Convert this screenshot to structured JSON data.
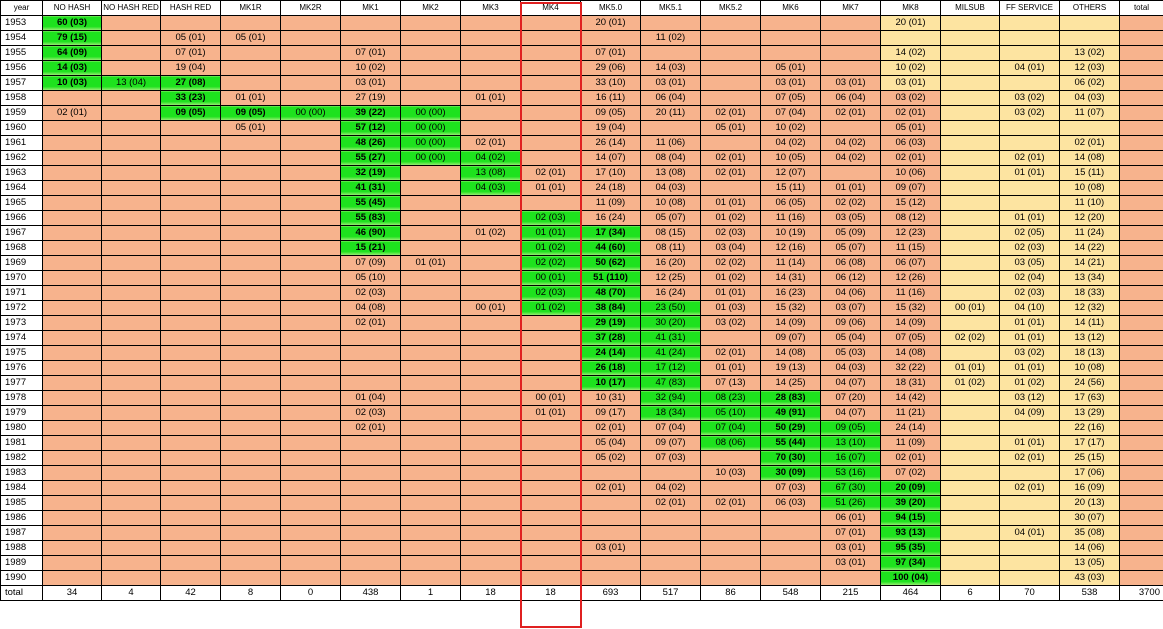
{
  "highlight_color": "#e02020",
  "colors": {
    "orange": "#f7b38d",
    "yellow": "#fde4a1",
    "green": "#1ee21e"
  },
  "headers": [
    "year",
    "NO HASH",
    "NO HASH RED",
    "HASH RED",
    "MK1R",
    "MK2R",
    "MK1",
    "MK2",
    "MK3",
    "MK4",
    "MK5.0",
    "MK5.1",
    "MK5.2",
    "MK6",
    "MK7",
    "MK8",
    "MILSUB",
    "FF SERVICE",
    "OTHERS",
    "total"
  ],
  "rows": [
    {
      "year": "1953",
      "c": [
        "60 (03)",
        "",
        "",
        "",
        "",
        "",
        "",
        "",
        "",
        "20 (01)",
        "",
        "",
        "",
        "",
        "20 (01)",
        "",
        "",
        "",
        ""
      ],
      "total": "5"
    },
    {
      "year": "1954",
      "c": [
        "79 (15)",
        "",
        "05 (01)",
        "05 (01)",
        "",
        "",
        "",
        "",
        "",
        "",
        "11 (02)",
        "",
        "",
        "",
        "",
        "",
        "",
        "",
        ""
      ],
      "total": "19"
    },
    {
      "year": "1955",
      "c": [
        "64 (09)",
        "",
        "07 (01)",
        "",
        "",
        "07 (01)",
        "",
        "",
        "",
        "07 (01)",
        "",
        "",
        "",
        "",
        "14 (02)",
        "",
        "",
        "13 (02)",
        ""
      ],
      "total": "16"
    },
    {
      "year": "1956",
      "c": [
        "14 (03)",
        "",
        "19 (04)",
        "",
        "",
        "10 (02)",
        "",
        "",
        "",
        "29 (06)",
        "14 (03)",
        "",
        "05 (01)",
        "",
        "10 (02)",
        "",
        "04 (01)",
        "12 (03)",
        ""
      ],
      "total": "25"
    },
    {
      "year": "1957",
      "c": [
        "10 (03)",
        "13 (04)",
        "27 (08)",
        "",
        "",
        "03 (01)",
        "",
        "",
        "",
        "33 (10)",
        "03 (01)",
        "",
        "03 (01)",
        "03 (01)",
        "03 (01)",
        "",
        "",
        "06 (02)",
        ""
      ],
      "total": "32"
    },
    {
      "year": "1958",
      "c": [
        "",
        "",
        "33 (23)",
        "01 (01)",
        "",
        "27 (19)",
        "",
        "01 (01)",
        "",
        "16 (11)",
        "06 (04)",
        "",
        "07 (05)",
        "06 (04)",
        "03 (02)",
        "",
        "03 (02)",
        "04 (03)",
        ""
      ],
      "total": "75"
    },
    {
      "year": "1959",
      "c": [
        "02 (01)",
        "",
        "09 (05)",
        "09 (05)",
        "00 (00)",
        "39 (22)",
        "00 (00)",
        "",
        "",
        "09 (05)",
        "20 (11)",
        "02 (01)",
        "07 (04)",
        "02 (01)",
        "02 (01)",
        "",
        "03 (02)",
        "11 (07)",
        ""
      ],
      "total": "65"
    },
    {
      "year": "1960",
      "c": [
        "",
        "",
        "",
        "05 (01)",
        "",
        "57 (12)",
        "00 (00)",
        "",
        "",
        "19 (04)",
        "",
        "05 (01)",
        "10 (02)",
        "",
        "05 (01)",
        "",
        "",
        "",
        ""
      ],
      "total": "21"
    },
    {
      "year": "1961",
      "c": [
        "",
        "",
        "",
        "",
        "",
        "48 (26)",
        "00 (00)",
        "02 (01)",
        "",
        "26 (14)",
        "11 (06)",
        "",
        "04 (02)",
        "04 (02)",
        "06 (03)",
        "",
        "",
        "02 (01)",
        ""
      ],
      "total": "55"
    },
    {
      "year": "1962",
      "c": [
        "",
        "",
        "",
        "",
        "",
        "55 (27)",
        "00 (00)",
        "04 (02)",
        "",
        "14 (07)",
        "08 (04)",
        "02 (01)",
        "10 (05)",
        "04 (02)",
        "02 (01)",
        "",
        "02 (01)",
        "14 (08)",
        ""
      ],
      "total": "58"
    },
    {
      "year": "1963",
      "c": [
        "",
        "",
        "",
        "",
        "",
        "32 (19)",
        "",
        "13 (08)",
        "02 (01)",
        "17 (10)",
        "13 (08)",
        "02 (01)",
        "12 (07)",
        "",
        "10 (06)",
        "",
        "01 (01)",
        "15 (11)",
        ""
      ],
      "total": "72"
    },
    {
      "year": "1964",
      "c": [
        "",
        "",
        "",
        "",
        "",
        "41 (31)",
        "",
        "04 (03)",
        "01 (01)",
        "24 (18)",
        "04 (03)",
        "",
        "15 (11)",
        "01 (01)",
        "09 (07)",
        "",
        "",
        "10 (08)",
        ""
      ],
      "total": "83"
    },
    {
      "year": "1965",
      "c": [
        "",
        "",
        "",
        "",
        "",
        "55 (45)",
        "",
        "",
        "",
        "11 (09)",
        "10 (08)",
        "01 (01)",
        "06 (05)",
        "02 (02)",
        "15 (12)",
        "",
        "",
        "11 (10)",
        ""
      ],
      "total": "92"
    },
    {
      "year": "1966",
      "c": [
        "",
        "",
        "",
        "",
        "",
        "55 (83)",
        "",
        "",
        "02 (03)",
        "16 (24)",
        "05 (07)",
        "01 (02)",
        "11 (16)",
        "03 (05)",
        "08 (12)",
        "",
        "01 (01)",
        "12 (20)",
        ""
      ],
      "total": "173"
    },
    {
      "year": "1967",
      "c": [
        "",
        "",
        "",
        "",
        "",
        "46 (90)",
        "",
        "01 (02)",
        "01 (01)",
        "17 (34)",
        "08 (15)",
        "02 (03)",
        "10 (19)",
        "05 (09)",
        "12 (23)",
        "",
        "02 (05)",
        "11 (24)",
        ""
      ],
      "total": "225"
    },
    {
      "year": "1968",
      "c": [
        "",
        "",
        "",
        "",
        "",
        "15 (21)",
        "",
        "",
        "01 (02)",
        "44 (60)",
        "08 (11)",
        "03 (04)",
        "12 (16)",
        "05 (07)",
        "11 (15)",
        "",
        "02 (03)",
        "14 (22)",
        ""
      ],
      "total": "161"
    },
    {
      "year": "1969",
      "c": [
        "",
        "",
        "",
        "",
        "",
        "07 (09)",
        "01 (01)",
        "",
        "02 (02)",
        "50 (62)",
        "16 (20)",
        "02 (02)",
        "11 (14)",
        "06 (08)",
        "06 (07)",
        "",
        "03 (05)",
        "14 (21)",
        ""
      ],
      "total": "151"
    },
    {
      "year": "1970",
      "c": [
        "",
        "",
        "",
        "",
        "",
        "05 (10)",
        "",
        "",
        "00 (01)",
        "51 (110)",
        "12 (25)",
        "01 (02)",
        "14 (31)",
        "06 (12)",
        "12 (26)",
        "",
        "02 (04)",
        "13 (34)",
        ""
      ],
      "total": "255"
    },
    {
      "year": "1971",
      "c": [
        "",
        "",
        "",
        "",
        "",
        "02 (03)",
        "",
        "",
        "02 (03)",
        "48 (70)",
        "16 (24)",
        "01 (01)",
        "16 (23)",
        "04 (06)",
        "11 (16)",
        "",
        "02 (03)",
        "18 (33)",
        ""
      ],
      "total": "182"
    },
    {
      "year": "1972",
      "c": [
        "",
        "",
        "",
        "",
        "",
        "04 (08)",
        "",
        "00 (01)",
        "01 (02)",
        "38 (84)",
        "23 (50)",
        "01 (03)",
        "15 (32)",
        "03 (07)",
        "15 (32)",
        "00 (01)",
        "04 (10)",
        "12 (32)",
        ""
      ],
      "total": "262"
    },
    {
      "year": "1973",
      "c": [
        "",
        "",
        "",
        "",
        "",
        "02 (01)",
        "",
        "",
        "",
        "29 (19)",
        "30 (20)",
        "03 (02)",
        "14 (09)",
        "09 (06)",
        "14 (09)",
        "",
        "01 (01)",
        "14 (11)",
        ""
      ],
      "total": "78"
    },
    {
      "year": "1974",
      "c": [
        "",
        "",
        "",
        "",
        "",
        "",
        "",
        "",
        "",
        "37 (28)",
        "41 (31)",
        "",
        "09 (07)",
        "05 (04)",
        "07 (05)",
        "02 (02)",
        "01 (01)",
        "13 (12)",
        ""
      ],
      "total": "90"
    },
    {
      "year": "1975",
      "c": [
        "",
        "",
        "",
        "",
        "",
        "",
        "",
        "",
        "",
        "24 (14)",
        "41 (24)",
        "02 (01)",
        "14 (08)",
        "05 (03)",
        "14 (08)",
        "",
        "03 (02)",
        "18 (13)",
        ""
      ],
      "total": "73"
    },
    {
      "year": "1976",
      "c": [
        "",
        "",
        "",
        "",
        "",
        "",
        "",
        "",
        "",
        "26 (18)",
        "17 (12)",
        "01 (01)",
        "19 (13)",
        "04 (03)",
        "32 (22)",
        "01 (01)",
        "01 (01)",
        "10 (08)",
        ""
      ],
      "total": "79"
    },
    {
      "year": "1977",
      "c": [
        "",
        "",
        "",
        "",
        "",
        "",
        "",
        "",
        "",
        "10 (17)",
        "47 (83)",
        "07 (13)",
        "14 (25)",
        "04 (07)",
        "18 (31)",
        "01 (02)",
        "01 (02)",
        "24 (56)",
        ""
      ],
      "total": "236"
    },
    {
      "year": "1978",
      "c": [
        "",
        "",
        "",
        "",
        "",
        "01 (04)",
        "",
        "",
        "00 (01)",
        "10 (31)",
        "32 (94)",
        "08 (23)",
        "28 (83)",
        "07 (20)",
        "14 (42)",
        "",
        "03 (12)",
        "17 (63)",
        ""
      ],
      "total": "373"
    },
    {
      "year": "1979",
      "c": [
        "",
        "",
        "",
        "",
        "",
        "02 (03)",
        "",
        "",
        "01 (01)",
        "09 (17)",
        "18 (34)",
        "05 (10)",
        "49 (91)",
        "04 (07)",
        "11 (21)",
        "",
        "04 (09)",
        "13 (29)",
        ""
      ],
      "total": "222"
    },
    {
      "year": "1980",
      "c": [
        "",
        "",
        "",
        "",
        "",
        "02 (01)",
        "",
        "",
        "",
        "02 (01)",
        "07 (04)",
        "07 (04)",
        "50 (29)",
        "09 (05)",
        "24 (14)",
        "",
        "",
        "22 (16)",
        ""
      ],
      "total": "74"
    },
    {
      "year": "1981",
      "c": [
        "",
        "",
        "",
        "",
        "",
        "",
        "",
        "",
        "",
        "05 (04)",
        "09 (07)",
        "08 (06)",
        "55 (44)",
        "13 (10)",
        "11 (09)",
        "",
        "01 (01)",
        "17 (17)",
        ""
      ],
      "total": "98"
    },
    {
      "year": "1982",
      "c": [
        "",
        "",
        "",
        "",
        "",
        "",
        "",
        "",
        "",
        "05 (02)",
        "07 (03)",
        "",
        "70 (30)",
        "16 (07)",
        "02 (01)",
        "",
        "02 (01)",
        "25 (15)",
        ""
      ],
      "total": "59"
    },
    {
      "year": "1983",
      "c": [
        "",
        "",
        "",
        "",
        "",
        "",
        "",
        "",
        "",
        "",
        "",
        "10 (03)",
        "30 (09)",
        "53 (16)",
        "07 (02)",
        "",
        "",
        "17 (06)",
        ""
      ],
      "total": "36"
    },
    {
      "year": "1984",
      "c": [
        "",
        "",
        "",
        "",
        "",
        "",
        "",
        "",
        "",
        "02 (01)",
        "04 (02)",
        "",
        "07 (03)",
        "67 (30)",
        "20 (09)",
        "",
        "02 (01)",
        "16 (09)",
        ""
      ],
      "total": "55"
    },
    {
      "year": "1985",
      "c": [
        "",
        "",
        "",
        "",
        "",
        "",
        "",
        "",
        "",
        "",
        "02 (01)",
        "02 (01)",
        "06 (03)",
        "51 (26)",
        "39 (20)",
        "",
        "",
        "20 (13)",
        ""
      ],
      "total": "64"
    },
    {
      "year": "1986",
      "c": [
        "",
        "",
        "",
        "",
        "",
        "",
        "",
        "",
        "",
        "",
        "",
        "",
        "",
        "06 (01)",
        "94 (15)",
        "",
        "",
        "30 (07)",
        ""
      ],
      "total": "23"
    },
    {
      "year": "1987",
      "c": [
        "",
        "",
        "",
        "",
        "",
        "",
        "",
        "",
        "",
        "",
        "",
        "",
        "",
        "07 (01)",
        "93 (13)",
        "",
        "04 (01)",
        "35 (08)",
        ""
      ],
      "total": "23"
    },
    {
      "year": "1988",
      "c": [
        "",
        "",
        "",
        "",
        "",
        "",
        "",
        "",
        "",
        "03 (01)",
        "",
        "",
        "",
        "03 (01)",
        "95 (35)",
        "",
        "",
        "14 (06)",
        ""
      ],
      "total": "43"
    },
    {
      "year": "1989",
      "c": [
        "",
        "",
        "",
        "",
        "",
        "",
        "",
        "",
        "",
        "",
        "",
        "",
        "",
        "03 (01)",
        "97 (34)",
        "",
        "",
        "13 (05)",
        ""
      ],
      "total": "40"
    },
    {
      "year": "1990",
      "c": [
        "",
        "",
        "",
        "",
        "",
        "",
        "",
        "",
        "",
        "",
        "",
        "",
        "",
        "",
        "100 (04)",
        "",
        "",
        "43 (03)",
        ""
      ],
      "total": "7"
    }
  ],
  "totals": {
    "label": "total",
    "values": [
      "34",
      "4",
      "42",
      "8",
      "0",
      "438",
      "1",
      "18",
      "18",
      "693",
      "517",
      "86",
      "548",
      "215",
      "464",
      "6",
      "70",
      "538",
      "3700"
    ]
  }
}
